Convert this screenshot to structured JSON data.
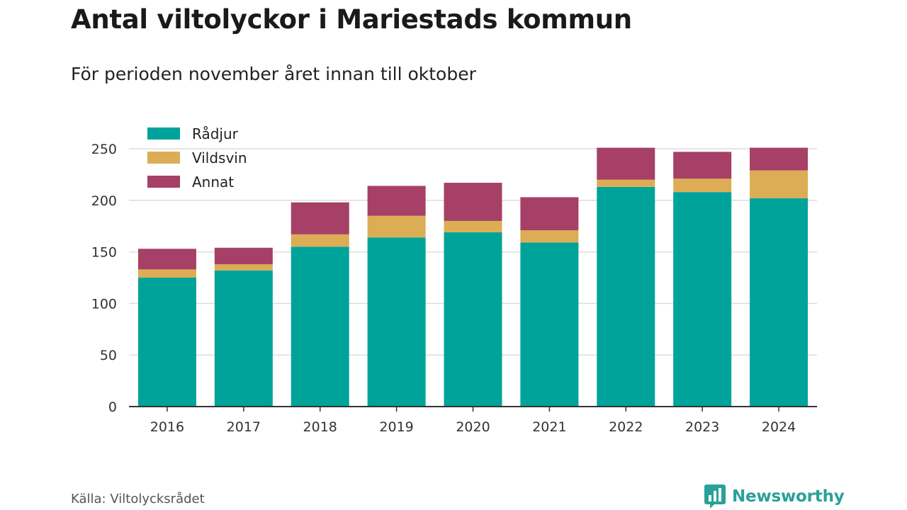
{
  "header": {
    "title": "Antal viltolyckor i Mariestads kommun",
    "subtitle": "För perioden november året innan till oktober"
  },
  "footer": {
    "source": "Källa: Viltolycksrådet",
    "brand": "Newsworthy"
  },
  "colors": {
    "radjur": "#00a39a",
    "vildsvin": "#dcad55",
    "annat": "#a64066",
    "grid": "#dddddd",
    "axis": "#333333",
    "brand": "#2aa198"
  },
  "chart_data": {
    "type": "bar",
    "stacked": true,
    "categories": [
      "2016",
      "2017",
      "2018",
      "2019",
      "2020",
      "2021",
      "2022",
      "2023",
      "2024"
    ],
    "series": [
      {
        "name": "Rådjur",
        "color": "#00a39a",
        "values": [
          125,
          132,
          155,
          164,
          169,
          159,
          213,
          208,
          202
        ]
      },
      {
        "name": "Vildsvin",
        "color": "#dcad55",
        "values": [
          8,
          6,
          12,
          21,
          11,
          12,
          7,
          13,
          27
        ]
      },
      {
        "name": "Annat",
        "color": "#a64066",
        "values": [
          20,
          16,
          31,
          29,
          37,
          32,
          31,
          26,
          22
        ]
      }
    ],
    "ylim": [
      0,
      250
    ],
    "yticks": [
      0,
      50,
      100,
      150,
      200,
      250
    ],
    "grid": true,
    "legend": "top-left"
  }
}
